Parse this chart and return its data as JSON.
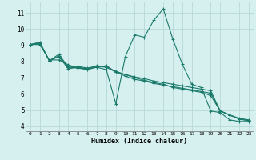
{
  "xlabel": "Humidex (Indice chaleur)",
  "bg_color": "#d6f0f0",
  "grid_color": "#b8d8d8",
  "line_color": "#1a7a6a",
  "xlim": [
    -0.5,
    23.5
  ],
  "ylim": [
    3.7,
    11.7
  ],
  "xticks": [
    0,
    1,
    2,
    3,
    4,
    5,
    6,
    7,
    8,
    9,
    10,
    11,
    12,
    13,
    14,
    15,
    16,
    17,
    18,
    19,
    20,
    21,
    22,
    23
  ],
  "yticks": [
    4,
    5,
    6,
    7,
    8,
    9,
    10,
    11
  ],
  "lines": [
    {
      "x": [
        0,
        1,
        2,
        3,
        4,
        5,
        6,
        7,
        8,
        9,
        10,
        11,
        12,
        13,
        14,
        15,
        16,
        17,
        18,
        19,
        20,
        21,
        22,
        23
      ],
      "y": [
        9.05,
        9.2,
        8.05,
        8.45,
        7.65,
        7.6,
        7.5,
        7.65,
        7.5,
        5.4,
        8.3,
        9.65,
        9.5,
        10.55,
        11.25,
        9.4,
        7.85,
        6.6,
        6.4,
        4.95,
        4.85,
        4.4,
        4.3,
        4.3
      ]
    },
    {
      "x": [
        0,
        1,
        2,
        3,
        4,
        5,
        6,
        7,
        8,
        9,
        10,
        11,
        12,
        13,
        14,
        15,
        16,
        17,
        18,
        19,
        20,
        21,
        22,
        23
      ],
      "y": [
        9.05,
        9.15,
        8.05,
        8.35,
        7.65,
        7.7,
        7.6,
        7.7,
        7.65,
        7.35,
        7.2,
        7.05,
        6.95,
        6.8,
        6.7,
        6.6,
        6.5,
        6.4,
        6.3,
        6.2,
        4.95,
        4.7,
        4.5,
        4.4
      ]
    },
    {
      "x": [
        0,
        1,
        2,
        3,
        4,
        5,
        6,
        7,
        8,
        9,
        10,
        11,
        12,
        13,
        14,
        15,
        16,
        17,
        18,
        19,
        20,
        21,
        22,
        23
      ],
      "y": [
        9.05,
        9.1,
        8.05,
        8.3,
        7.55,
        7.65,
        7.55,
        7.65,
        7.75,
        7.35,
        7.1,
        6.9,
        6.8,
        6.65,
        6.55,
        6.45,
        6.35,
        6.25,
        6.15,
        6.05,
        4.95,
        4.7,
        4.45,
        4.35
      ]
    },
    {
      "x": [
        0,
        1,
        2,
        3,
        4,
        5,
        6,
        7,
        8,
        9,
        10,
        11,
        12,
        13,
        14,
        15,
        16,
        17,
        18,
        19,
        20,
        21,
        22,
        23
      ],
      "y": [
        9.05,
        9.05,
        8.1,
        8.1,
        7.8,
        7.6,
        7.55,
        7.75,
        7.65,
        7.4,
        7.2,
        7.0,
        6.85,
        6.7,
        6.6,
        6.4,
        6.3,
        6.2,
        6.1,
        5.9,
        4.95,
        4.7,
        4.45,
        4.35
      ]
    }
  ]
}
